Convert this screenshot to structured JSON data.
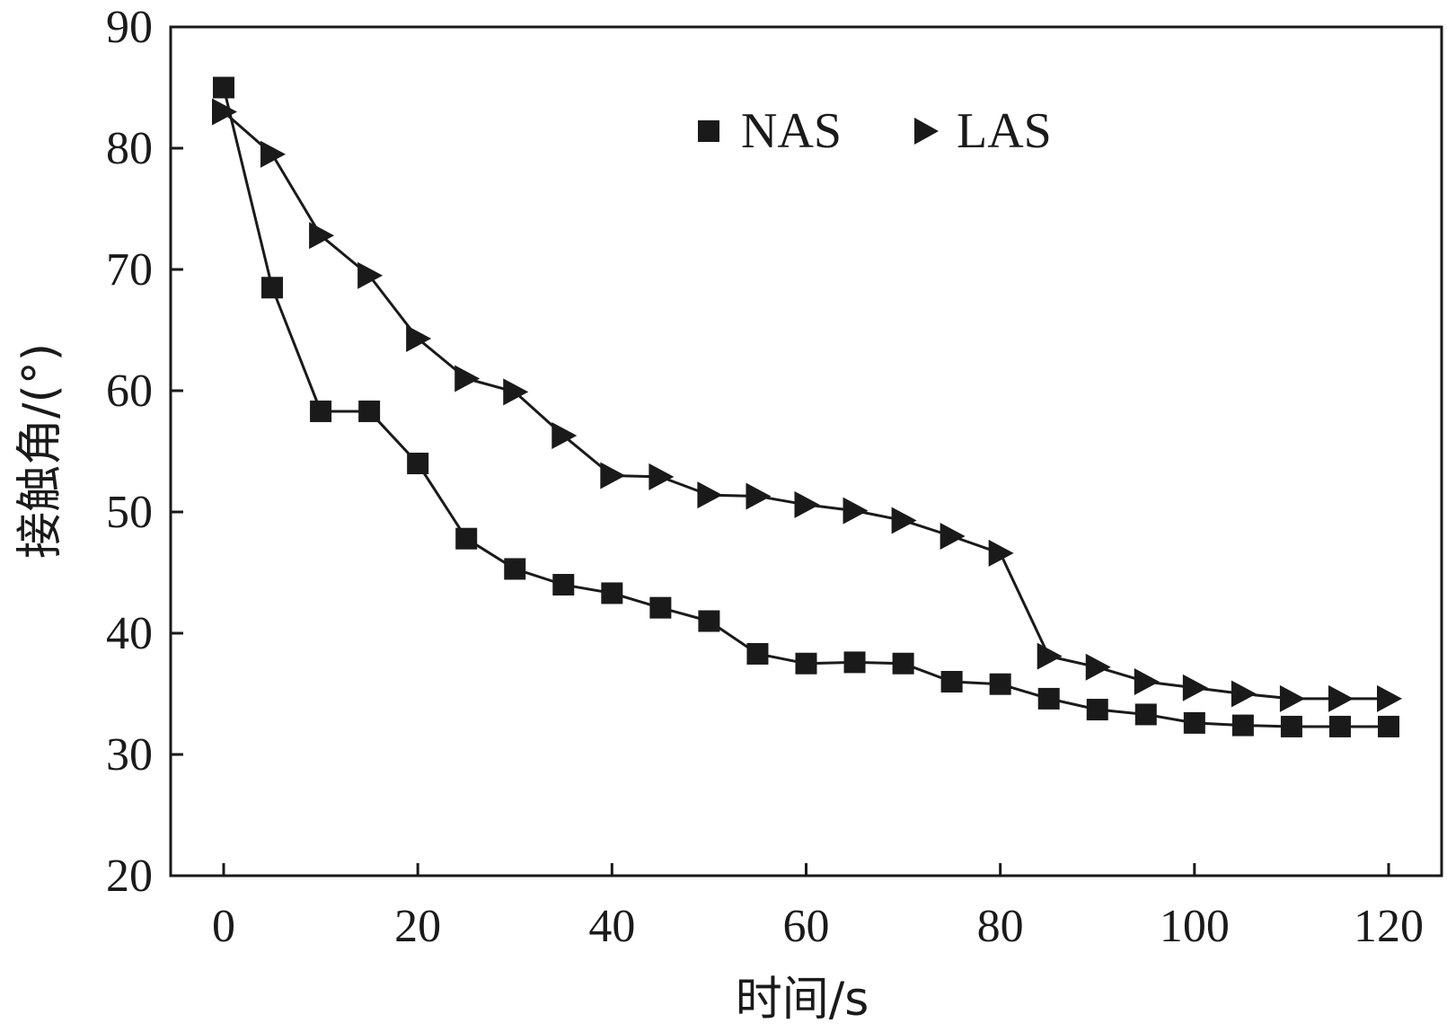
{
  "chart_data": {
    "type": "line",
    "title": "",
    "xlabel": "时间/s",
    "ylabel": "接触角/(°)",
    "xlim": [
      0,
      120
    ],
    "ylim": [
      20,
      90
    ],
    "xticks": [
      0,
      20,
      40,
      60,
      80,
      100,
      120
    ],
    "yticks": [
      20,
      30,
      40,
      50,
      60,
      70,
      80,
      90
    ],
    "x": [
      0,
      5,
      10,
      15,
      20,
      25,
      30,
      35,
      40,
      45,
      50,
      55,
      60,
      65,
      70,
      75,
      80,
      85,
      90,
      95,
      100,
      105,
      110,
      115,
      120
    ],
    "grid": false,
    "legend_position": "top-center",
    "series": [
      {
        "name": "NAS",
        "marker": "square",
        "color": "#1a1a1a",
        "values": [
          85,
          68.5,
          58.3,
          58.3,
          54,
          47.8,
          45.3,
          44,
          43.3,
          42.1,
          41,
          38.3,
          37.5,
          37.6,
          37.5,
          36,
          35.8,
          34.6,
          33.7,
          33.3,
          32.6,
          32.4,
          32.3,
          32.3,
          32.3
        ]
      },
      {
        "name": "LAS",
        "marker": "triangle-right",
        "color": "#1a1a1a",
        "values": [
          83,
          79.5,
          72.8,
          69.5,
          64.3,
          61,
          59.9,
          56.3,
          53,
          52.9,
          51.4,
          51.3,
          50.6,
          50.1,
          49.3,
          48,
          46.6,
          38.1,
          37.2,
          36,
          35.5,
          35,
          34.6,
          34.6,
          34.6
        ]
      }
    ]
  }
}
